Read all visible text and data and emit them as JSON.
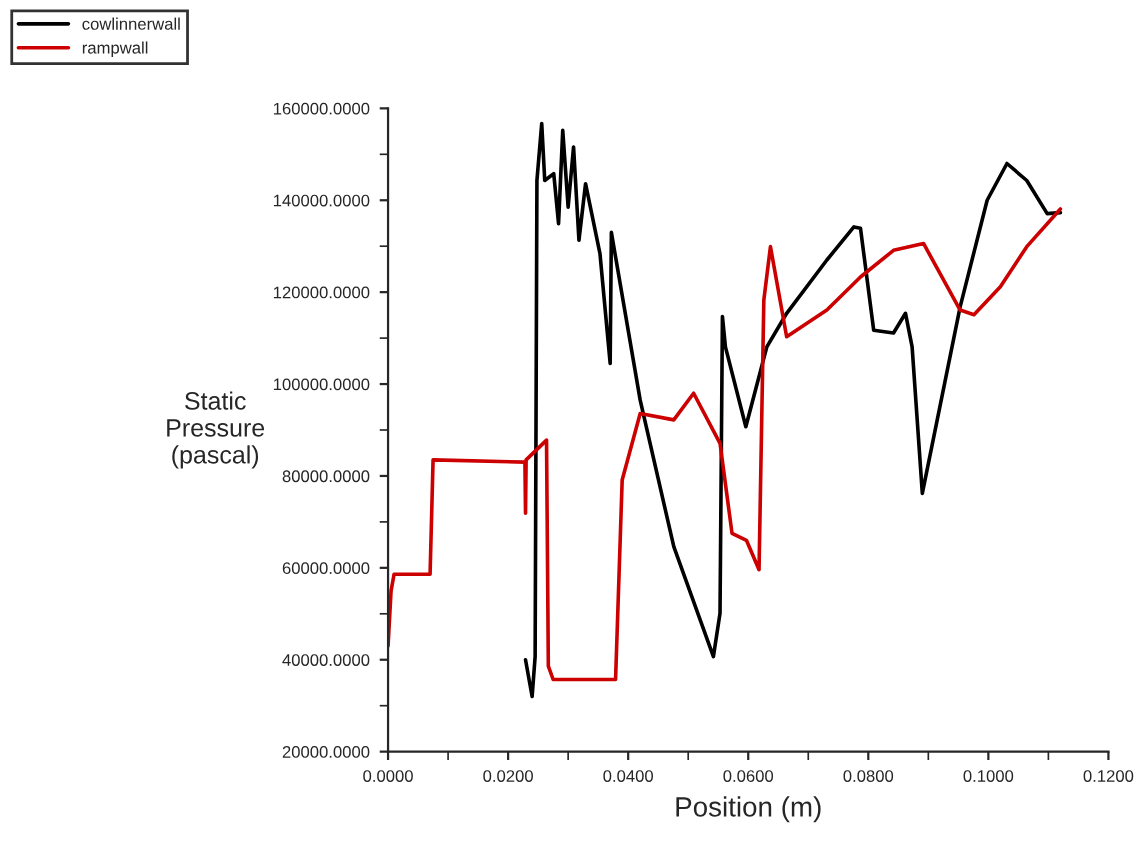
{
  "chart_data": {
    "type": "line",
    "xlabel": "Position (m)",
    "ylabel": "Static\nPressure\n(pascal)",
    "xlim": [
      0,
      0.12
    ],
    "ylim": [
      20000,
      160000
    ],
    "xticks": [
      {
        "value": 0,
        "label": "0.0000"
      },
      {
        "value": 0.02,
        "label": "0.0200"
      },
      {
        "value": 0.04,
        "label": "0.0400"
      },
      {
        "value": 0.06,
        "label": "0.0600"
      },
      {
        "value": 0.08,
        "label": "0.0800"
      },
      {
        "value": 0.1,
        "label": "0.1000"
      },
      {
        "value": 0.12,
        "label": "0.1200"
      }
    ],
    "yticks": [
      {
        "value": 20000,
        "label": "20000.0000"
      },
      {
        "value": 40000,
        "label": "40000.0000"
      },
      {
        "value": 60000,
        "label": "60000.0000"
      },
      {
        "value": 80000,
        "label": "80000.0000"
      },
      {
        "value": 100000,
        "label": "100000.0000"
      },
      {
        "value": 120000,
        "label": "120000.0000"
      },
      {
        "value": 140000,
        "label": "140000.0000"
      },
      {
        "value": 160000,
        "label": "160000.0000"
      }
    ],
    "grid": false,
    "legend": "top left",
    "line_style": "solid",
    "marker": "none",
    "series": [
      {
        "name": "cowlinnerwall",
        "color": "#000000",
        "x": [
          0.0229,
          0.024,
          0.0245,
          0.0248,
          0.0256,
          0.0261,
          0.0276,
          0.0284,
          0.0291,
          0.03,
          0.0309,
          0.0318,
          0.0329,
          0.0353,
          0.037,
          0.0372,
          0.042,
          0.0476,
          0.0542,
          0.0553,
          0.0557,
          0.0562,
          0.0596,
          0.0631,
          0.0664,
          0.0731,
          0.0776,
          0.0787,
          0.0809,
          0.0842,
          0.0862,
          0.0873,
          0.089,
          0.0953,
          0.0998,
          0.1031,
          0.1064,
          0.1098,
          0.112
        ],
        "values": [
          40000,
          32000,
          40700,
          144300,
          156700,
          144300,
          145800,
          134900,
          155200,
          138500,
          151600,
          131300,
          143600,
          128400,
          104500,
          133000,
          96500,
          64600,
          40700,
          50100,
          114700,
          108100,
          90700,
          108100,
          115400,
          127000,
          134200,
          133900,
          111700,
          111100,
          115400,
          108100,
          76200,
          116800,
          140000,
          148000,
          144300,
          137100,
          137300
        ]
      },
      {
        "name": "rampwall",
        "color": "#cc0000",
        "x": [
          0,
          0.0005,
          0.001,
          0.007,
          0.0075,
          0.0228,
          0.0229,
          0.023,
          0.0264,
          0.0267,
          0.0275,
          0.0379,
          0.039,
          0.042,
          0.0476,
          0.0509,
          0.0553,
          0.0573,
          0.0597,
          0.0618,
          0.0626,
          0.0637,
          0.0664,
          0.0731,
          0.0787,
          0.0842,
          0.0892,
          0.0953,
          0.0976,
          0.102,
          0.1064,
          0.112
        ],
        "values": [
          43000,
          55000,
          58600,
          58600,
          83500,
          83000,
          71900,
          83500,
          87800,
          38600,
          35700,
          35700,
          79100,
          93600,
          92200,
          98000,
          87100,
          67500,
          66000,
          59600,
          118300,
          129900,
          110300,
          116100,
          123300,
          129100,
          130600,
          116100,
          115100,
          121200,
          129900,
          138100
        ]
      }
    ]
  }
}
